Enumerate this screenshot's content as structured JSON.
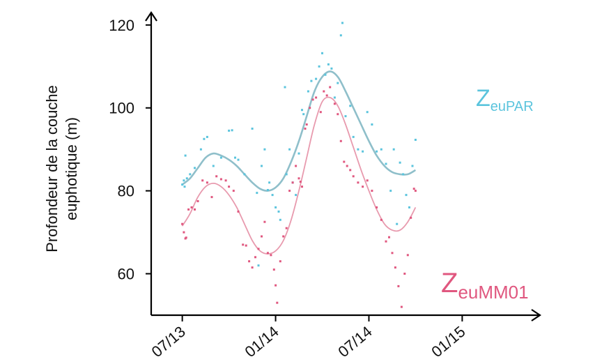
{
  "chart_data": {
    "type": "scatter",
    "title": "",
    "xlabel": "",
    "ylabel": [
      "Profondeur de la couche",
      "euphotique (m)"
    ],
    "x_tick_labels": [
      "07/13",
      "01/14",
      "07/14",
      "01/15"
    ],
    "x_ticks": [
      "2013-07",
      "2014-01",
      "2014-07",
      "2015-01"
    ],
    "y_ticks": [
      60,
      80,
      100,
      120
    ],
    "xlim": [
      "2013-05",
      "2015-06"
    ],
    "ylim": [
      50,
      123
    ],
    "grid": false,
    "series": [
      {
        "name": "ZeuPAR",
        "label_main": "Z",
        "label_sub": "euPAR",
        "color": "#5bc4dd",
        "smooth_color": "#8fbfca",
        "smooth": [
          [
            0.0,
            81.5
          ],
          [
            0.5,
            83
          ],
          [
            1.0,
            85.5
          ],
          [
            1.5,
            88
          ],
          [
            2.0,
            89
          ],
          [
            2.5,
            88.5
          ],
          [
            3.0,
            87.5
          ],
          [
            3.5,
            86
          ],
          [
            4.0,
            84
          ],
          [
            4.5,
            82
          ],
          [
            5.0,
            80.5
          ],
          [
            5.5,
            80
          ],
          [
            6.0,
            80.8
          ],
          [
            6.5,
            83
          ],
          [
            7.0,
            87
          ],
          [
            7.5,
            92
          ],
          [
            8.0,
            98
          ],
          [
            8.5,
            104
          ],
          [
            9.0,
            107.5
          ],
          [
            9.5,
            108.8
          ],
          [
            10.0,
            107.5
          ],
          [
            10.5,
            104
          ],
          [
            11.0,
            100
          ],
          [
            11.5,
            96
          ],
          [
            12.0,
            92
          ],
          [
            12.5,
            88.5
          ],
          [
            13.0,
            86
          ],
          [
            13.5,
            84.5
          ],
          [
            14.0,
            84
          ],
          [
            14.5,
            84
          ],
          [
            15.0,
            85
          ]
        ],
        "points": [
          [
            0.0,
            81.5
          ],
          [
            0.1,
            82.5
          ],
          [
            0.2,
            88.5
          ],
          [
            0.15,
            81
          ],
          [
            0.3,
            83
          ],
          [
            0.5,
            84
          ],
          [
            0.8,
            85.5
          ],
          [
            1.2,
            90
          ],
          [
            1.4,
            92.5
          ],
          [
            1.6,
            93
          ],
          [
            2.0,
            86
          ],
          [
            2.5,
            88
          ],
          [
            3.0,
            94.5
          ],
          [
            3.2,
            94.6
          ],
          [
            3.4,
            88
          ],
          [
            3.6,
            87.5
          ],
          [
            4.0,
            84
          ],
          [
            4.5,
            95
          ],
          [
            4.8,
            79.5
          ],
          [
            4.9,
            62
          ],
          [
            5.1,
            86
          ],
          [
            5.3,
            90
          ],
          [
            5.5,
            80.2
          ],
          [
            5.6,
            82
          ],
          [
            5.8,
            79
          ],
          [
            6.0,
            76
          ],
          [
            6.2,
            75
          ],
          [
            6.3,
            73
          ],
          [
            6.6,
            105
          ],
          [
            6.7,
            84
          ],
          [
            6.9,
            90
          ],
          [
            7.1,
            82
          ],
          [
            7.3,
            79
          ],
          [
            7.5,
            89
          ],
          [
            7.7,
            99.5
          ],
          [
            7.8,
            98.5
          ],
          [
            8.1,
            104
          ],
          [
            8.3,
            106.5
          ],
          [
            8.6,
            107
          ],
          [
            8.8,
            110
          ],
          [
            9.0,
            113.2
          ],
          [
            9.2,
            108
          ],
          [
            9.4,
            110.5
          ],
          [
            9.6,
            109.5
          ],
          [
            9.8,
            102.5
          ],
          [
            10.0,
            106
          ],
          [
            10.2,
            117.5
          ],
          [
            10.3,
            120.5
          ],
          [
            10.5,
            98
          ],
          [
            10.8,
            100.5
          ],
          [
            11.0,
            93
          ],
          [
            11.3,
            90
          ],
          [
            11.6,
            89.5
          ],
          [
            11.9,
            99
          ],
          [
            12.2,
            96
          ],
          [
            12.5,
            89.5
          ],
          [
            12.8,
            90
          ],
          [
            13.1,
            86.5
          ],
          [
            13.4,
            80
          ],
          [
            13.6,
            90
          ],
          [
            13.8,
            72
          ],
          [
            14.0,
            86.8
          ],
          [
            14.2,
            84
          ],
          [
            14.4,
            79
          ],
          [
            14.6,
            76
          ],
          [
            14.8,
            86
          ],
          [
            15.0,
            92.3
          ]
        ]
      },
      {
        "name": "ZeuMM01",
        "label_main": "Z",
        "label_sub": "euMM01",
        "color": "#e0577f",
        "smooth_color": "#e89aae",
        "smooth": [
          [
            0.0,
            71.5
          ],
          [
            0.5,
            74.5
          ],
          [
            1.0,
            78.5
          ],
          [
            1.5,
            81
          ],
          [
            2.0,
            81.8
          ],
          [
            2.5,
            81
          ],
          [
            3.0,
            79
          ],
          [
            3.5,
            76
          ],
          [
            4.0,
            72
          ],
          [
            4.5,
            68
          ],
          [
            5.0,
            65.5
          ],
          [
            5.5,
            64.8
          ],
          [
            6.0,
            65.5
          ],
          [
            6.5,
            68
          ],
          [
            7.0,
            73
          ],
          [
            7.5,
            80
          ],
          [
            8.0,
            88
          ],
          [
            8.5,
            96
          ],
          [
            9.0,
            101.5
          ],
          [
            9.5,
            102.5
          ],
          [
            10.0,
            100.5
          ],
          [
            10.5,
            96
          ],
          [
            11.0,
            90.5
          ],
          [
            11.5,
            85
          ],
          [
            12.0,
            80
          ],
          [
            12.5,
            75.5
          ],
          [
            13.0,
            72
          ],
          [
            13.5,
            70.5
          ],
          [
            14.0,
            70.5
          ],
          [
            14.5,
            72.5
          ],
          [
            15.0,
            76
          ]
        ],
        "points": [
          [
            0.0,
            72
          ],
          [
            0.1,
            70
          ],
          [
            0.2,
            68.5
          ],
          [
            0.25,
            68.7
          ],
          [
            0.4,
            75.5
          ],
          [
            0.6,
            76
          ],
          [
            0.8,
            75.5
          ],
          [
            1.0,
            77.5
          ],
          [
            1.3,
            82.5
          ],
          [
            1.6,
            82
          ],
          [
            1.9,
            78.5
          ],
          [
            2.2,
            83.5
          ],
          [
            2.5,
            82.8
          ],
          [
            2.8,
            82.5
          ],
          [
            3.0,
            81
          ],
          [
            3.3,
            80
          ],
          [
            3.6,
            75
          ],
          [
            3.9,
            67
          ],
          [
            4.1,
            66.8
          ],
          [
            4.3,
            63
          ],
          [
            4.5,
            61.5
          ],
          [
            4.7,
            64
          ],
          [
            4.9,
            66
          ],
          [
            5.1,
            69
          ],
          [
            5.3,
            72.5
          ],
          [
            5.5,
            65
          ],
          [
            5.7,
            64.5
          ],
          [
            5.9,
            61
          ],
          [
            6.0,
            57.2
          ],
          [
            6.1,
            53
          ],
          [
            6.3,
            63
          ],
          [
            6.5,
            69
          ],
          [
            6.7,
            71
          ],
          [
            6.9,
            80
          ],
          [
            7.1,
            82
          ],
          [
            7.3,
            86
          ],
          [
            7.5,
            83
          ],
          [
            7.6,
            82.2
          ],
          [
            7.7,
            81
          ],
          [
            7.9,
            95
          ],
          [
            8.0,
            96
          ],
          [
            8.2,
            100
          ],
          [
            8.4,
            102
          ],
          [
            8.6,
            102.5
          ],
          [
            8.9,
            99
          ],
          [
            9.1,
            104
          ],
          [
            9.3,
            103
          ],
          [
            9.5,
            105
          ],
          [
            9.8,
            101
          ],
          [
            10.0,
            98.5
          ],
          [
            10.2,
            92
          ],
          [
            10.4,
            87
          ],
          [
            10.6,
            86
          ],
          [
            10.8,
            85
          ],
          [
            11.0,
            83.5
          ],
          [
            11.3,
            82
          ],
          [
            11.6,
            81
          ],
          [
            11.9,
            82.5
          ],
          [
            12.2,
            80
          ],
          [
            12.5,
            76
          ],
          [
            12.8,
            73
          ],
          [
            13.1,
            67.8
          ],
          [
            13.3,
            68.8
          ],
          [
            13.5,
            65
          ],
          [
            13.7,
            61.5
          ],
          [
            13.9,
            57
          ],
          [
            14.1,
            52
          ],
          [
            14.3,
            60
          ],
          [
            14.5,
            64.5
          ],
          [
            14.7,
            73.5
          ],
          [
            14.9,
            80.5
          ],
          [
            15.0,
            80
          ]
        ]
      }
    ]
  }
}
